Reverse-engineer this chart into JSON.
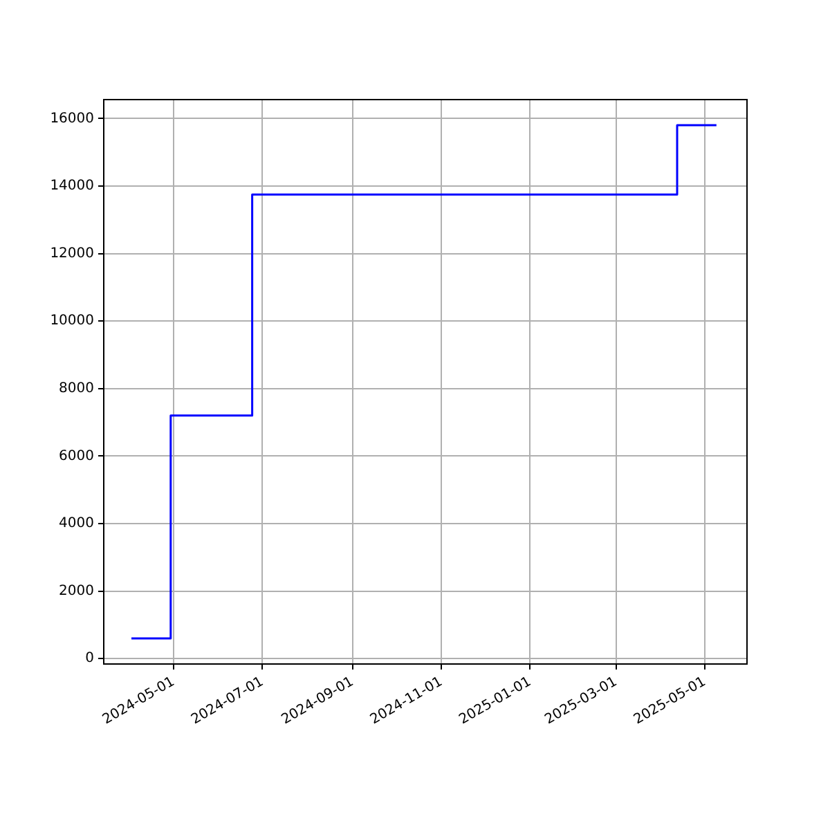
{
  "chart_data": {
    "type": "step",
    "x": [
      "2024-04-02",
      "2024-04-29",
      "2024-06-24",
      "2025-04-12",
      "2025-05-09"
    ],
    "series": [
      {
        "color": "#0000ff",
        "values": [
          600,
          7200,
          13750,
          15800,
          15800
        ]
      }
    ],
    "xlim": [
      "2024-03-14",
      "2025-05-30"
    ],
    "xticks": [
      "2024-05-01",
      "2024-07-01",
      "2024-09-01",
      "2024-11-01",
      "2025-01-01",
      "2025-03-01",
      "2025-05-01"
    ],
    "ylim": [
      -160,
      16560
    ],
    "yticks": [
      0,
      2000,
      4000,
      6000,
      8000,
      10000,
      12000,
      14000,
      16000
    ],
    "grid": true,
    "legend": false
  }
}
